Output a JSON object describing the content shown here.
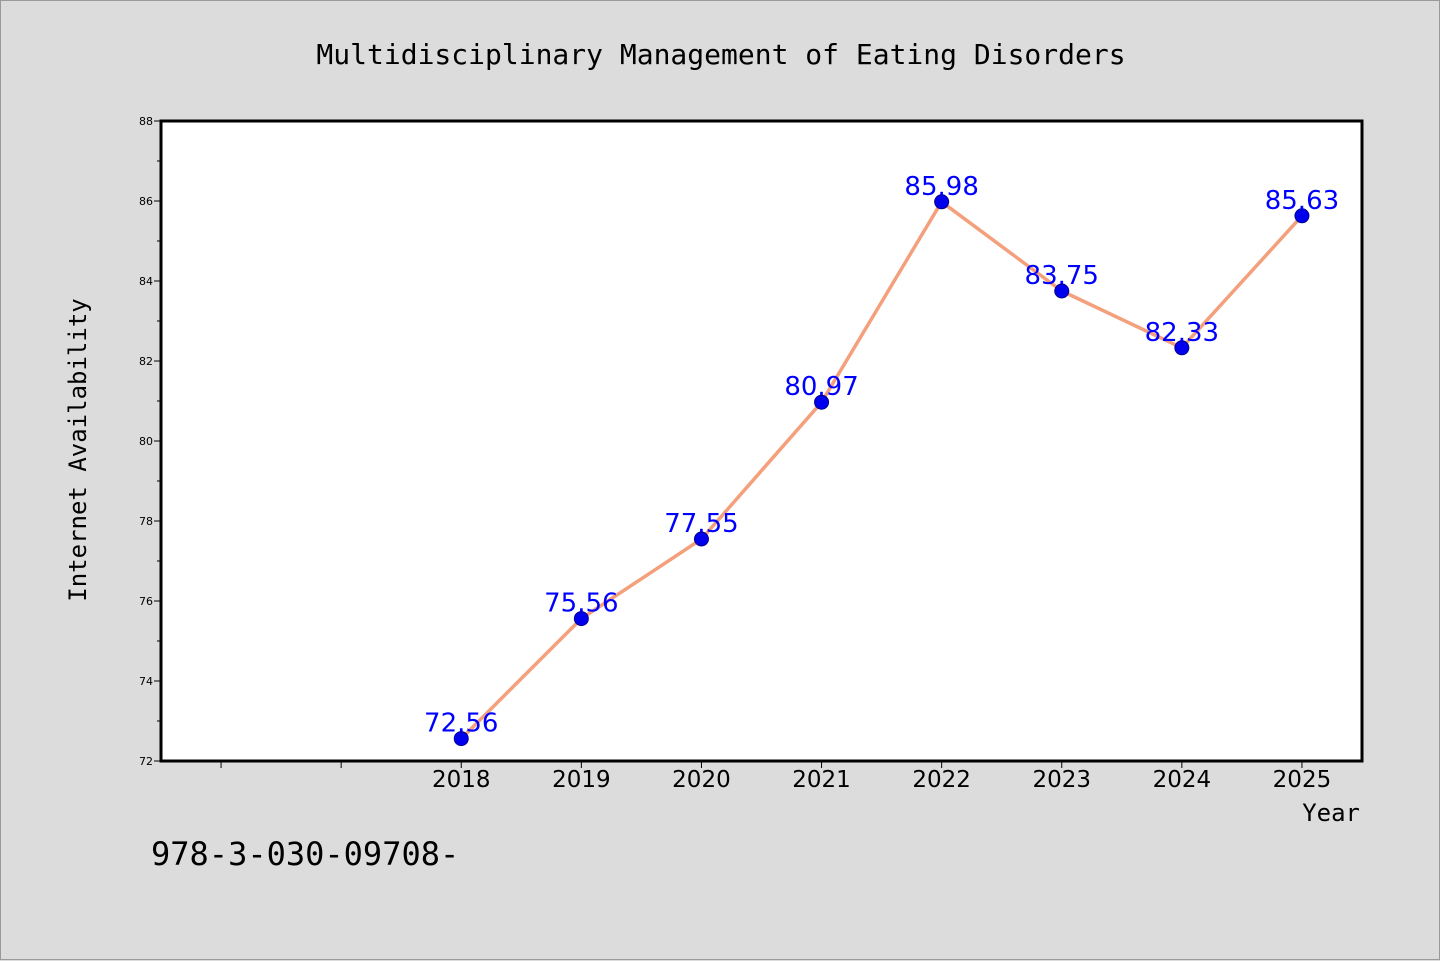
{
  "chart_data": {
    "type": "line",
    "title": "Multidisciplinary Management of Eating Disorders",
    "xlabel": "Year",
    "ylabel": "Internet Availability",
    "x": [
      2018,
      2019,
      2020,
      2021,
      2022,
      2023,
      2024,
      2025
    ],
    "x_tick_labels": [
      "2018",
      "2019",
      "2020",
      "2021",
      "2022",
      "2023",
      "2024",
      "2025"
    ],
    "series": [
      {
        "values": [
          72.56,
          75.56,
          77.55,
          80.97,
          85.98,
          83.75,
          82.33,
          85.63
        ]
      }
    ],
    "data_labels": [
      "72.56",
      "75.56",
      "77.55",
      "80.97",
      "85.98",
      "83.75",
      "82.33",
      "85.63"
    ],
    "y_ticks": [
      72,
      74,
      76,
      78,
      80,
      82,
      84,
      86,
      88
    ],
    "y_tick_labels": [
      "72",
      "74",
      "76",
      "78",
      "80",
      "82",
      "84",
      "86",
      "88"
    ],
    "ylim": [
      72,
      88
    ],
    "xlim": [
      2015.5,
      2025.5
    ],
    "grid": false,
    "legend": "none",
    "colors": {
      "line": "#f4a07c",
      "marker_fill": "#0000ee",
      "marker_edge": "#00008b",
      "data_label": "#0000ff",
      "text": "#000000",
      "plot_bg": "#ffffff",
      "page_bg": "#dcdcdc"
    }
  },
  "footer": {
    "isbn_text": "978-3-030-09708-"
  }
}
